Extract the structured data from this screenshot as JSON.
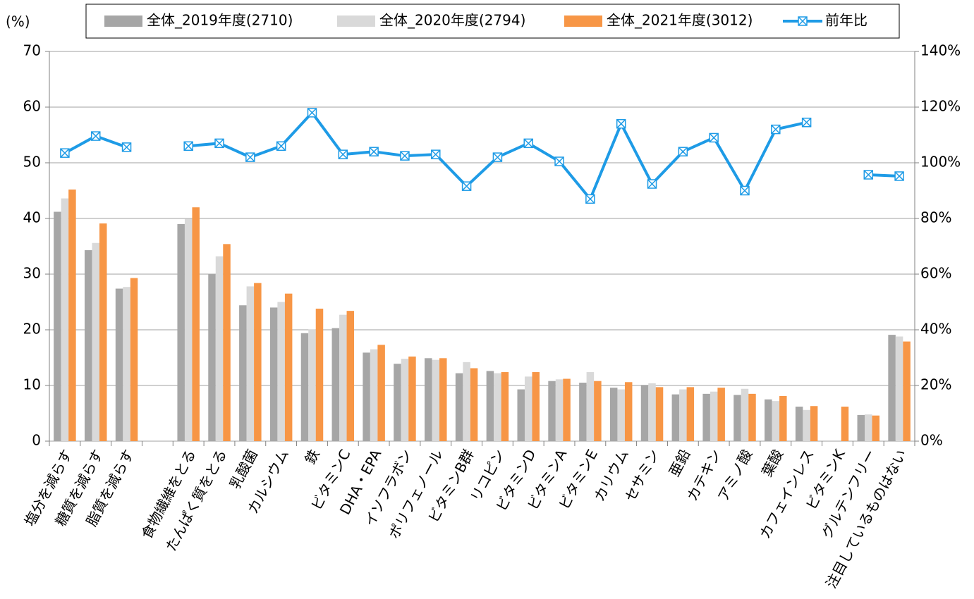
{
  "chart_data": {
    "type": "bar_line",
    "y_label": "(%)",
    "categories": [
      "塩分を減らす",
      "糖質を減らす",
      "脂質を減らす",
      null,
      "食物繊維をとる",
      "たんぱく質をとる",
      "乳酸菌",
      "カルシウム",
      "鉄",
      "ビタミンC",
      "DHA・EPA",
      "イソフラボン",
      "ポリフェノール",
      "ビタミンB群",
      "リコピン",
      "ビタミンD",
      "ビタミンA",
      "ビタミンE",
      "カリウム",
      "セサミン",
      "亜鉛",
      "カテキン",
      "アミノ酸",
      "葉酸",
      "カフェインレス",
      "ビタミンK",
      "グルテンフリー",
      "注目しているものはない"
    ],
    "series": [
      {
        "name": "全体_2019年度(2710)",
        "color": "#a6a6a6",
        "type": "bar",
        "values": [
          41.2,
          34.3,
          27.4,
          null,
          39.0,
          30.0,
          24.4,
          24.0,
          19.4,
          20.3,
          15.9,
          13.9,
          14.9,
          12.2,
          12.6,
          9.3,
          10.8,
          10.5,
          9.6,
          10.1,
          8.4,
          8.5,
          8.3,
          7.5,
          6.2,
          null,
          4.7,
          19.1
        ]
      },
      {
        "name": "全体_2020年度(2794)",
        "color": "#d9d9d9",
        "type": "bar",
        "values": [
          43.6,
          35.6,
          27.7,
          null,
          39.9,
          33.2,
          27.8,
          25.0,
          20.1,
          22.7,
          16.5,
          14.8,
          14.6,
          14.2,
          12.2,
          11.6,
          11.1,
          12.4,
          9.3,
          10.4,
          9.3,
          8.9,
          9.4,
          7.2,
          5.6,
          null,
          4.8,
          18.8
        ]
      },
      {
        "name": "全体_2021年度(3012)",
        "color": "#f79646",
        "type": "bar",
        "values": [
          45.2,
          39.1,
          29.3,
          null,
          42.0,
          35.4,
          28.4,
          26.5,
          23.8,
          23.4,
          17.3,
          15.2,
          14.9,
          13.1,
          12.4,
          12.4,
          11.2,
          10.8,
          10.6,
          9.7,
          9.7,
          9.6,
          8.5,
          8.1,
          6.3,
          6.2,
          4.6,
          17.9
        ]
      },
      {
        "name": "前年比",
        "color": "#1e9be6",
        "type": "line",
        "axis": "y2",
        "values": [
          103.5,
          109.6,
          105.6,
          null,
          106,
          107,
          102,
          106,
          118,
          103,
          104,
          102.5,
          103,
          91.6,
          102,
          107,
          100.5,
          87,
          114,
          92.4,
          104,
          109,
          90,
          112,
          114.5,
          null,
          95.7,
          95.2
        ]
      }
    ],
    "ylim": [
      0,
      70
    ],
    "yticks": [
      0,
      10,
      20,
      30,
      40,
      50,
      60,
      70
    ],
    "y2lim": [
      0,
      140
    ],
    "y2ticks": [
      {
        "value": 0,
        "label": "0%"
      },
      {
        "value": 20,
        "label": "20%"
      },
      {
        "value": 40,
        "label": "40%"
      },
      {
        "value": 60,
        "label": "60%"
      },
      {
        "value": 80,
        "label": "80%"
      },
      {
        "value": 100,
        "label": "100%"
      },
      {
        "value": 120,
        "label": "120%"
      },
      {
        "value": 140,
        "label": "140%"
      }
    ],
    "grid": true,
    "legend": "top"
  }
}
